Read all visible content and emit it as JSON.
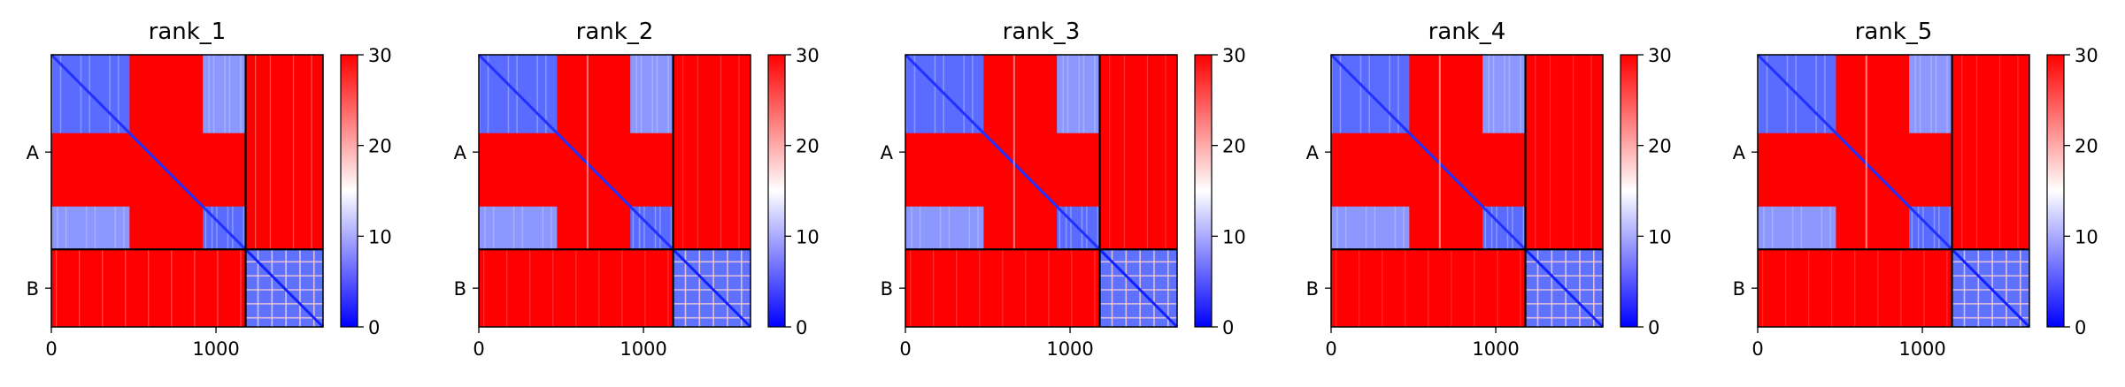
{
  "chart_data": [
    {
      "type": "heatmap",
      "title": "rank_1",
      "variant": 1
    },
    {
      "type": "heatmap",
      "title": "rank_2",
      "variant": 2
    },
    {
      "type": "heatmap",
      "title": "rank_3",
      "variant": 3
    },
    {
      "type": "heatmap",
      "title": "rank_4",
      "variant": 4
    },
    {
      "type": "heatmap",
      "title": "rank_5",
      "variant": 5
    }
  ],
  "shared": {
    "x_range": [
      0,
      1650
    ],
    "x_ticks": [
      0,
      1000
    ],
    "x_tick_labels": [
      "0",
      "1000"
    ],
    "chain_boundary": 1180,
    "chains": [
      "A",
      "B"
    ],
    "chain_label_positions": [
      590,
      1415
    ],
    "colorbar": {
      "range": [
        0,
        30
      ],
      "ticks": [
        0,
        10,
        20,
        30
      ],
      "tick_labels": [
        "0",
        "10",
        "20",
        "30"
      ],
      "colors": [
        "#0000ff",
        "#ffffff",
        "#ff0000"
      ]
    }
  }
}
